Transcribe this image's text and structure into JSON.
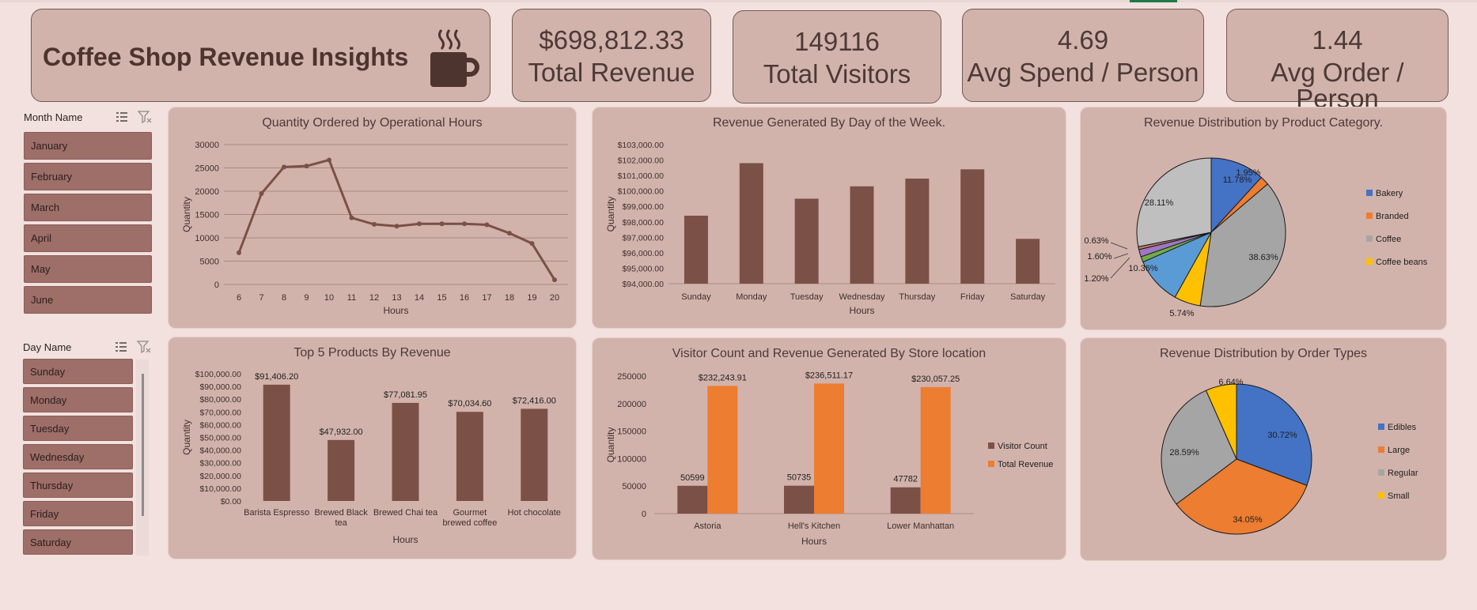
{
  "header": {
    "title": "Coffee Shop Revenue Insights",
    "kpis": [
      {
        "value": "$698,812.33",
        "label": "Total Revenue"
      },
      {
        "value": "149116",
        "label": "Total Visitors"
      },
      {
        "value": "4.69",
        "label": "Avg Spend / Person"
      },
      {
        "value": "1.44",
        "label": "Avg Order /  Person"
      }
    ]
  },
  "slicers": {
    "month": {
      "title": "Month Name",
      "items": [
        "January",
        "February",
        "March",
        "April",
        "May",
        "June"
      ]
    },
    "day": {
      "title": "Day Name",
      "items": [
        "Sunday",
        "Monday",
        "Tuesday",
        "Wednesday",
        "Thursday",
        "Friday",
        "Saturday"
      ]
    }
  },
  "colors": {
    "bar": "#7b5046",
    "accent_orange": "#ed7d31",
    "blue": "#4472c4",
    "gray": "#a5a5a5",
    "yellow": "#ffc000",
    "green": "#70ad47"
  },
  "chart_data": [
    {
      "id": "quantity_by_hours",
      "type": "line",
      "title": "Quantity Ordered by Operational Hours",
      "xlabel": "Hours",
      "ylabel": "Quantity",
      "x": [
        6,
        7,
        8,
        9,
        10,
        11,
        12,
        13,
        14,
        15,
        16,
        17,
        18,
        19,
        20
      ],
      "values": [
        6800,
        19500,
        25200,
        25400,
        26700,
        14300,
        12900,
        12500,
        13000,
        13000,
        13000,
        12800,
        11000,
        8800,
        1000
      ],
      "ylim": [
        0,
        30000
      ],
      "yticks": [
        "0",
        "5000",
        "10000",
        "15000",
        "20000",
        "25000",
        "30000"
      ],
      "grid": true
    },
    {
      "id": "revenue_by_day",
      "type": "bar",
      "title": "Revenue Generated By Day of the Week.",
      "xlabel": "Hours",
      "ylabel": "Quantity",
      "categories": [
        "Sunday",
        "Monday",
        "Tuesday",
        "Wednesday",
        "Thursday",
        "Friday",
        "Saturday"
      ],
      "values": [
        98400,
        101800,
        99500,
        100300,
        100800,
        101400,
        96900
      ],
      "ylim": [
        94000,
        103000
      ],
      "yticks": [
        "$94,000.00",
        "$95,000.00",
        "$96,000.00",
        "$97,000.00",
        "$98,000.00",
        "$99,000.00",
        "$100,000.00",
        "$101,000.00",
        "$102,000.00",
        "$103,000.00"
      ],
      "grid": false
    },
    {
      "id": "revenue_by_category",
      "type": "pie",
      "title": "Revenue Distribution by Product Category.",
      "legend": [
        "Bakery",
        "Branded",
        "Coffee",
        "Coffee beans"
      ],
      "slices": [
        {
          "name": "Bakery",
          "value": 11.78,
          "label": "11.78%",
          "color": "#4472c4"
        },
        {
          "name": "Branded",
          "value": 1.95,
          "label": "1.95%",
          "color": "#ed7d31"
        },
        {
          "name": "Coffee",
          "value": 38.63,
          "label": "38.63%",
          "color": "#a5a5a5"
        },
        {
          "name": "Coffee beans",
          "value": 5.74,
          "label": "5.74%",
          "color": "#ffc000"
        },
        {
          "name": "",
          "value": 10.36,
          "label": "10.36%",
          "color": "#5b9bd5"
        },
        {
          "name": "",
          "value": 1.2,
          "label": "1.20%",
          "color": "#70ad47"
        },
        {
          "name": "",
          "value": 1.6,
          "label": "1.60%",
          "color": "#9e79c2"
        },
        {
          "name": "",
          "value": 0.63,
          "label": "0.63%",
          "color": "#c07a6a"
        },
        {
          "name": "",
          "value": 28.11,
          "label": "28.11%",
          "color": "#bfbfbf"
        }
      ],
      "legend_position": "right"
    },
    {
      "id": "top5_products",
      "type": "bar",
      "title": "Top 5 Products By Revenue",
      "xlabel": "Hours",
      "ylabel": "Quantity",
      "categories": [
        "Barista Espresso",
        "Brewed Black tea",
        "Brewed Chai tea",
        "Gourmet brewed coffee",
        "Hot chocolate"
      ],
      "category_lines": [
        [
          "Barista Espresso"
        ],
        [
          "Brewed Black",
          "tea"
        ],
        [
          "Brewed Chai tea"
        ],
        [
          "Gourmet",
          "brewed coffee"
        ],
        [
          "Hot chocolate"
        ]
      ],
      "values": [
        91406.2,
        47932.0,
        77081.95,
        70034.6,
        72416.0
      ],
      "labels": [
        "$91,406.20",
        "$47,932.00",
        "$77,081.95",
        "$70,034.60",
        "$72,416.00"
      ],
      "ylim": [
        0,
        100000
      ],
      "yticks": [
        "$0.00",
        "$10,000.00",
        "$20,000.00",
        "$30,000.00",
        "$40,000.00",
        "$50,000.00",
        "$60,000.00",
        "$70,000.00",
        "$80,000.00",
        "$90,000.00",
        "$100,000.00"
      ]
    },
    {
      "id": "store_location",
      "type": "bar",
      "title": "Visitor Count and Revenue Generated By Store location",
      "xlabel": "Hours",
      "ylabel": "Quantity",
      "categories": [
        "Astoria",
        "Hell's Kitchen",
        "Lower Manhattan"
      ],
      "series": [
        {
          "name": "Visitor Count",
          "values": [
            50599,
            50735,
            47782
          ],
          "labels": [
            "50599",
            "50735",
            "47782"
          ],
          "color": "#7b5046"
        },
        {
          "name": "Total Revenue",
          "values": [
            232243.91,
            236511.17,
            230057.25
          ],
          "labels": [
            "$232,243.91",
            "$236,511.17",
            "$230,057.25"
          ],
          "color": "#ed7d31"
        }
      ],
      "ylim": [
        0,
        250000
      ],
      "yticks": [
        "0",
        "50000",
        "100000",
        "150000",
        "200000",
        "250000"
      ],
      "legend_position": "right"
    },
    {
      "id": "order_types",
      "type": "pie",
      "title": "Revenue Distribution by Order Types",
      "legend": [
        "Edibles",
        "Large",
        "Regular",
        "Small"
      ],
      "slices": [
        {
          "name": "Edibles",
          "value": 30.72,
          "label": "30.72%",
          "color": "#4472c4"
        },
        {
          "name": "Large",
          "value": 34.05,
          "label": "34.05%",
          "color": "#ed7d31"
        },
        {
          "name": "Regular",
          "value": 28.59,
          "label": "28.59%",
          "color": "#a5a5a5"
        },
        {
          "name": "Small",
          "value": 6.64,
          "label": "6.64%",
          "color": "#ffc000"
        }
      ],
      "legend_position": "right"
    }
  ]
}
